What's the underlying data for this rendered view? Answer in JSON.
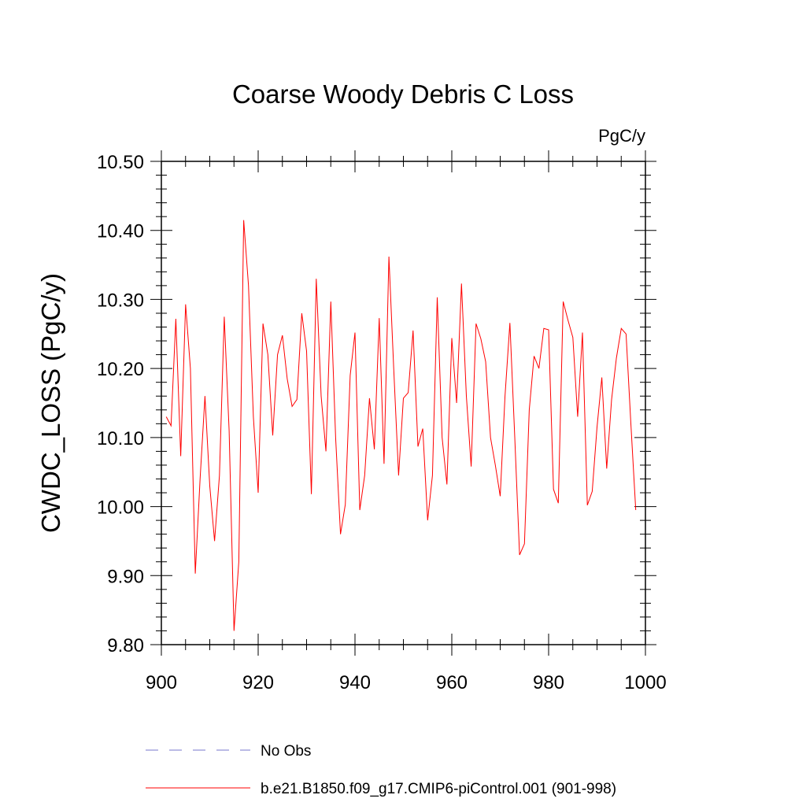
{
  "chart_data": {
    "type": "line",
    "title": "Coarse Woody Debris C Loss",
    "units_label": "PgC/y",
    "xlabel": "",
    "ylabel": "CWDC_LOSS  (PgC/y)",
    "xlim": [
      900,
      1000
    ],
    "ylim": [
      9.8,
      10.5
    ],
    "x_ticks": [
      900,
      920,
      940,
      960,
      980,
      1000
    ],
    "x_tick_labels": [
      "900",
      "920",
      "940",
      "960",
      "980",
      "1000"
    ],
    "y_ticks": [
      9.8,
      9.9,
      10.0,
      10.1,
      10.2,
      10.3,
      10.4,
      10.5
    ],
    "y_tick_labels": [
      "9.80",
      "9.90",
      "10.00",
      "10.10",
      "10.20",
      "10.30",
      "10.40",
      "10.50"
    ],
    "legend_position": "bottom",
    "legend": [
      {
        "label": "No Obs",
        "style": "dashed",
        "color": "#7777cc"
      },
      {
        "label": "b.e21.B1850.f09_g17.CMIP6-piControl.001 (901-998)",
        "style": "solid",
        "color": "#ff0000"
      }
    ],
    "series": [
      {
        "name": "b.e21.B1850.f09_g17.CMIP6-piControl.001 (901-998)",
        "color": "#ff0000",
        "x": [
          901,
          902,
          903,
          904,
          905,
          906,
          907,
          908,
          909,
          910,
          911,
          912,
          913,
          914,
          915,
          916,
          917,
          918,
          919,
          920,
          921,
          922,
          923,
          924,
          925,
          926,
          927,
          928,
          929,
          930,
          931,
          932,
          933,
          934,
          935,
          936,
          937,
          938,
          939,
          940,
          941,
          942,
          943,
          944,
          945,
          946,
          947,
          948,
          949,
          950,
          951,
          952,
          953,
          954,
          955,
          956,
          957,
          958,
          959,
          960,
          961,
          962,
          963,
          964,
          965,
          966,
          967,
          968,
          969,
          970,
          971,
          972,
          973,
          974,
          975,
          976,
          977,
          978,
          979,
          980,
          981,
          982,
          983,
          984,
          985,
          986,
          987,
          988,
          989,
          990,
          991,
          992,
          993,
          994,
          995,
          996,
          997,
          998
        ],
        "values": [
          10.13,
          10.117,
          10.272,
          10.073,
          10.293,
          10.2,
          9.903,
          10.04,
          10.16,
          10.03,
          9.95,
          10.045,
          10.275,
          10.11,
          9.82,
          9.92,
          10.415,
          10.32,
          10.13,
          10.02,
          10.265,
          10.22,
          10.103,
          10.22,
          10.248,
          10.185,
          10.145,
          10.155,
          10.28,
          10.225,
          10.018,
          10.33,
          10.16,
          10.08,
          10.297,
          10.1,
          9.96,
          10.003,
          10.19,
          10.252,
          9.995,
          10.045,
          10.157,
          10.083,
          10.273,
          10.062,
          10.362,
          10.2,
          10.045,
          10.157,
          10.165,
          10.255,
          10.087,
          10.113,
          9.98,
          10.045,
          10.303,
          10.1,
          10.032,
          10.244,
          10.15,
          10.323,
          10.16,
          10.058,
          10.265,
          10.243,
          10.21,
          10.1,
          10.06,
          10.015,
          10.16,
          10.266,
          10.1,
          9.93,
          9.946,
          10.14,
          10.218,
          10.2,
          10.258,
          10.256,
          10.025,
          10.005,
          10.297,
          10.27,
          10.245,
          10.13,
          10.252,
          10.002,
          10.022,
          10.115,
          10.187,
          10.055,
          10.155,
          10.215,
          10.258,
          10.25,
          10.12,
          9.995
        ]
      }
    ]
  }
}
